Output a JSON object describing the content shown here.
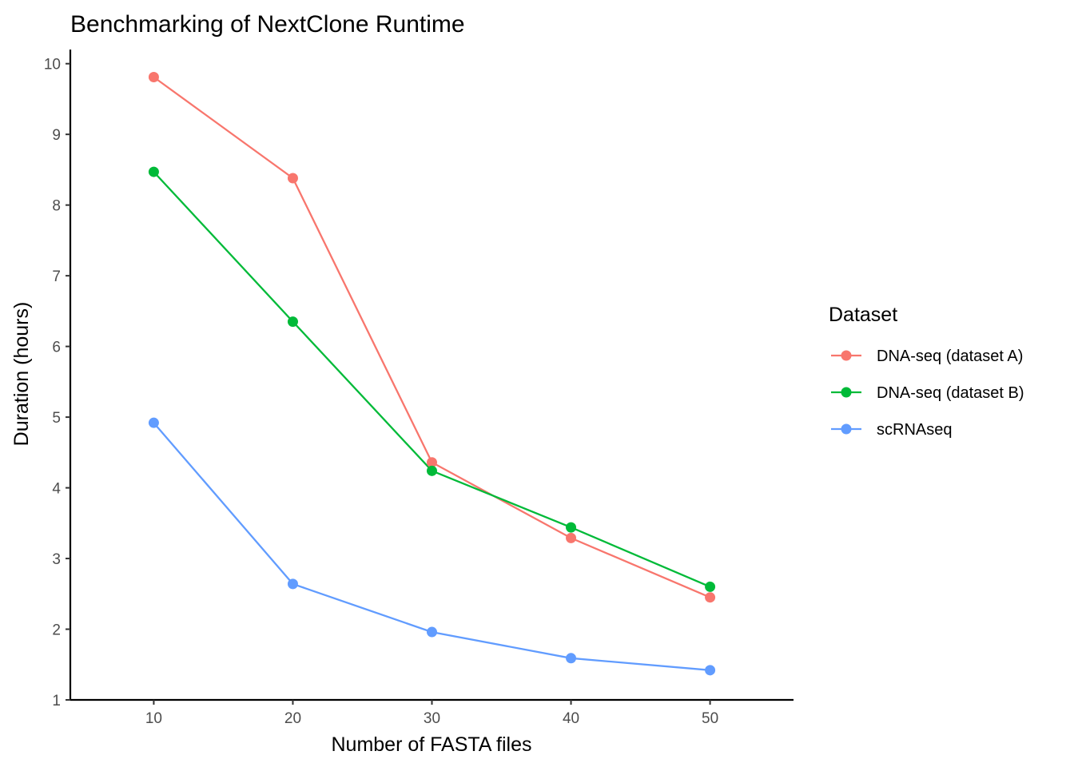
{
  "chart_data": {
    "type": "line",
    "title": "Benchmarking of NextClone Runtime",
    "xlabel": "Number of FASTA files",
    "ylabel": "Duration (hours)",
    "x": [
      10,
      20,
      30,
      40,
      50
    ],
    "xlim": [
      4,
      56
    ],
    "ylim": [
      1,
      10.2
    ],
    "xticks": [
      10,
      20,
      30,
      40,
      50
    ],
    "yticks": [
      1,
      2,
      3,
      4,
      5,
      6,
      7,
      8,
      9,
      10
    ],
    "grid": false,
    "legend": {
      "title": "Dataset",
      "placement": "right"
    },
    "series": [
      {
        "name": "DNA-seq (dataset A)",
        "color": "#F8766D",
        "values": [
          9.81,
          8.38,
          4.36,
          3.29,
          2.45
        ]
      },
      {
        "name": "DNA-seq (dataset B)",
        "color": "#00BA38",
        "values": [
          8.47,
          6.35,
          4.24,
          3.44,
          2.6
        ]
      },
      {
        "name": "scRNAseq",
        "color": "#619CFF",
        "values": [
          4.92,
          2.64,
          1.96,
          1.59,
          1.42
        ]
      }
    ]
  }
}
